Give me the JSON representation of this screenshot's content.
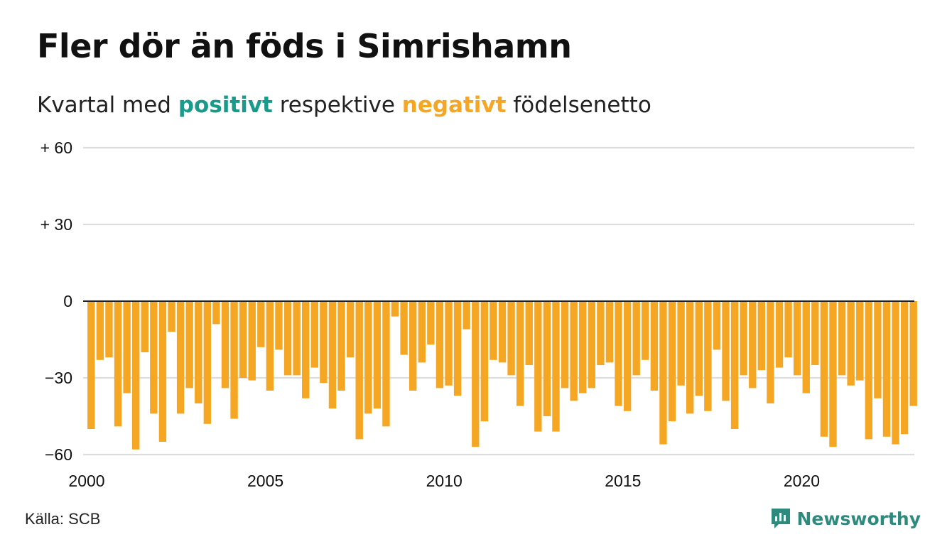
{
  "title": "Fler dör än föds i Simrishamn",
  "subtitle": {
    "prefix": "Kvartal med ",
    "positive_word": "positivt",
    "middle": " respektive ",
    "negative_word": "negativt",
    "suffix": " födelsenetto"
  },
  "source": "Källa: SCB",
  "brand": "Newsworthy",
  "colors": {
    "positive": "#1a9a8a",
    "negative": "#f5a623",
    "grid": "#dddddd",
    "zero_line": "#222222",
    "brand": "#2f8a7e"
  },
  "icons": {
    "brand_logo": "newsworthy-logo-icon"
  },
  "chart_data": {
    "type": "bar",
    "x_start": "2000 Q1",
    "x_ticks": [
      "2000",
      "2005",
      "2010",
      "2015",
      "2020"
    ],
    "y_ticks": [
      {
        "value": 60,
        "label": "+ 60"
      },
      {
        "value": 30,
        "label": "+ 30"
      },
      {
        "value": 0,
        "label": "0"
      },
      {
        "value": -30,
        "label": "−30"
      },
      {
        "value": -60,
        "label": "−60"
      }
    ],
    "ylim": [
      -60,
      60
    ],
    "grid": true,
    "values": [
      -50,
      -23,
      -22,
      -49,
      -36,
      -58,
      -20,
      -44,
      -55,
      -12,
      -44,
      -34,
      -40,
      -48,
      -9,
      -34,
      -46,
      -30,
      -31,
      -18,
      -35,
      -19,
      -29,
      -29,
      -38,
      -26,
      -32,
      -42,
      -35,
      -22,
      -54,
      -44,
      -42,
      -49,
      -6,
      -21,
      -35,
      -24,
      -17,
      -34,
      -33,
      -37,
      -11,
      -57,
      -47,
      -23,
      -24,
      -29,
      -41,
      -25,
      -51,
      -45,
      -51,
      -34,
      -39,
      -36,
      -34,
      -25,
      -24,
      -41,
      -43,
      -29,
      -23,
      -35,
      -56,
      -47,
      -33,
      -44,
      -37,
      -43,
      -19,
      -39,
      -50,
      -29,
      -34,
      -27,
      -40,
      -26,
      -22,
      -29,
      -36,
      -25,
      -53,
      -57,
      -29,
      -33,
      -31,
      -54,
      -38,
      -53,
      -56,
      -52,
      -41
    ]
  }
}
